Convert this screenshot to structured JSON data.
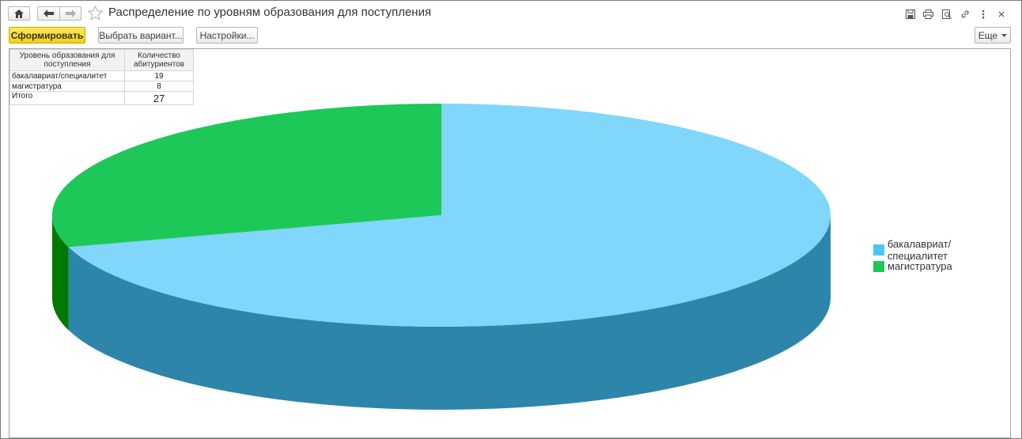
{
  "window": {
    "title": "Распределение по уровням образования для поступления"
  },
  "toolbar": {
    "generate_label": "Сформировать",
    "choose_variant_label": "Выбрать вариант...",
    "settings_label": "Настройки...",
    "more_label": "Еще"
  },
  "table": {
    "header_level": "Уровень образования для поступления",
    "header_count": "Количество абитуриентов",
    "rows": [
      {
        "label": "бакалавриат/специалитет",
        "value": "19"
      },
      {
        "label": "магистратура",
        "value": "8"
      }
    ],
    "total_label": "Итого",
    "total_value": "27"
  },
  "chart_data": {
    "type": "pie",
    "categories": [
      "бакалавриат/специалитет",
      "магистратура"
    ],
    "values": [
      19,
      8
    ],
    "colors": [
      "#80d6fb",
      "#1dc858"
    ],
    "side_colors": [
      "#2e85aa",
      "#017801"
    ],
    "legend_colors": [
      "#4cc4f4",
      "#1dc858"
    ],
    "legend_position": "right",
    "style": "3d"
  }
}
